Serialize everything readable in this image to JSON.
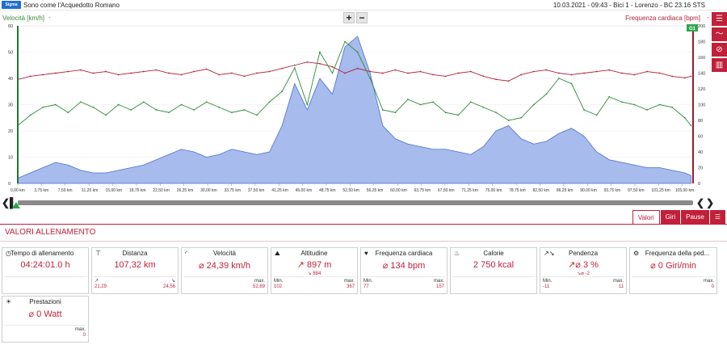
{
  "topbar": {
    "logo_text": "Sigma",
    "app_title": "Sono come l'Acquedotto Romano",
    "session_info": "10.03.2021  -  09:43  -  Bici 1  -  Lorenzo  -  BC 23.16 STS"
  },
  "chart_header": {
    "left_axis_title": "Velocità [km/h]",
    "right_axis_title": "Frequenza cardiaca [bpm]",
    "caret": "-",
    "zoom_in": "+",
    "zoom_out": "−",
    "marker_label": "G1"
  },
  "toolbar_icons": [
    "list-icon",
    "line-chart-icon",
    "no-signal-icon",
    "bar-chart-icon"
  ],
  "timeline": {
    "prev": "❮",
    "next": "❯",
    "marker": "▌"
  },
  "tabs": [
    {
      "label": "Valori",
      "active": true
    },
    {
      "label": "Giri",
      "active": false
    },
    {
      "label": "Pause",
      "active": false
    },
    {
      "label": "☰",
      "active": false
    }
  ],
  "section_title": "VALORI ALLENAMENTO",
  "colors": {
    "accent": "#c21f39",
    "speed": "#2f8a3a",
    "heart": "#b3233a",
    "altitude_fill": "#9db4ea",
    "altitude_stroke": "#4a6fd4"
  },
  "cards": [
    {
      "icon": "clock-icon",
      "icon_glyph": "◷",
      "title": "Tempo di allenamento",
      "value": "04:24:01.0 h",
      "min_label": "",
      "min_value": "",
      "max_label": "",
      "max_value": ""
    },
    {
      "icon": "signpost-icon",
      "icon_glyph": "⊤",
      "title": "Distanza",
      "value": "107,32 km",
      "min_label": "↗",
      "min_value": "21,29",
      "max_label": "↘",
      "max_value": "24,56"
    },
    {
      "icon": "speedometer-icon",
      "icon_glyph": "◜",
      "title": "Velocità",
      "value": "⌀ 24,39 km/h",
      "min_label": "",
      "min_value": "",
      "max_label": "max.",
      "max_value": "52,69"
    },
    {
      "icon": "mountain-icon",
      "icon_glyph": "⛰",
      "title": "Altitudine",
      "value": "↗ 897 m",
      "sub": "↘ 884",
      "min_label": "Min.",
      "min_value": "102",
      "max_label": "max.",
      "max_value": "367"
    },
    {
      "icon": "heart-icon",
      "icon_glyph": "♥",
      "title": "Frequenza cardiaca",
      "value": "⌀ 134 bpm",
      "min_label": "Min.",
      "min_value": "77",
      "max_label": "max.",
      "max_value": "157"
    },
    {
      "icon": "flame-icon",
      "icon_glyph": "♨",
      "title": "Calorie",
      "value": "2 750 kcal",
      "min_label": "",
      "min_value": "",
      "max_label": "",
      "max_value": ""
    },
    {
      "icon": "gradient-icon",
      "icon_glyph": "↗↘",
      "title": "Pendenza",
      "value": "↗⌀ 3 %",
      "sub": "↘⌀ -2",
      "min_label": "Min.",
      "min_value": "-11",
      "max_label": "max.",
      "max_value": "11"
    },
    {
      "icon": "pedal-icon",
      "icon_glyph": "⚙",
      "title": "Frequenza della ped...",
      "value": "⌀ 0 Giri/min",
      "min_label": "",
      "min_value": "",
      "max_label": "max.",
      "max_value": "0"
    },
    {
      "icon": "bulb-icon",
      "icon_glyph": "☀",
      "title": "Prestazioni",
      "value": "⌀ 0 Watt",
      "min_label": "",
      "min_value": "",
      "max_label": "max.",
      "max_value": "0"
    }
  ],
  "chart_data": {
    "type": "line",
    "title": "",
    "xlabel": "",
    "ylabel": "Velocità [km/h]",
    "y2label": "Frequenza cardiaca [bpm]",
    "xlim": [
      0,
      107.32
    ],
    "ylim": [
      0,
      60
    ],
    "y2lim": [
      0,
      200
    ],
    "x_ticks": [
      "0,00 km",
      "3,75 km",
      "7,50 km",
      "11,25 km",
      "15,00 km",
      "18,75 km",
      "22,50 km",
      "26,25 km",
      "30,00 km",
      "33,75 km",
      "37,50 km",
      "41,25 km",
      "45,00 km",
      "48,75 km",
      "52,50 km",
      "56,25 km",
      "60,00 km",
      "63,75 km",
      "67,50 km",
      "71,25 km",
      "75,00 km",
      "78,75 km",
      "82,50 km",
      "86,25 km",
      "90,00 km",
      "93,75 km",
      "97,50 km",
      "101,25 km",
      "105,00 km"
    ],
    "y_ticks": [
      "0",
      "10",
      "20",
      "30",
      "40",
      "50",
      "60"
    ],
    "y2_ticks": [
      "0",
      "20",
      "40",
      "60",
      "80",
      "100",
      "120",
      "140",
      "160",
      "180",
      "200"
    ],
    "grid": true,
    "series": [
      {
        "name": "Frequenza cardiaca [bpm]",
        "axis": "right",
        "kind": "line",
        "x": [
          0,
          2,
          4,
          6,
          8,
          10,
          12,
          14,
          16,
          18,
          20,
          22,
          24,
          26,
          28,
          30,
          32,
          34,
          36,
          38,
          40,
          42,
          44,
          46,
          48,
          50,
          52,
          54,
          56,
          58,
          60,
          62,
          64,
          66,
          68,
          70,
          72,
          74,
          76,
          78,
          80,
          82,
          84,
          86,
          88,
          90,
          92,
          94,
          96,
          98,
          100,
          102,
          104,
          106,
          107
        ],
        "values": [
          132,
          136,
          138,
          140,
          142,
          144,
          140,
          142,
          138,
          140,
          142,
          144,
          140,
          138,
          142,
          145,
          138,
          140,
          136,
          140,
          142,
          146,
          150,
          154,
          152,
          148,
          140,
          146,
          142,
          140,
          144,
          140,
          142,
          138,
          136,
          140,
          142,
          136,
          132,
          130,
          138,
          142,
          144,
          140,
          138,
          140,
          142,
          144,
          140,
          138,
          142,
          140,
          136,
          134,
          136
        ]
      },
      {
        "name": "Velocità [km/h]",
        "axis": "left",
        "kind": "line",
        "x": [
          0,
          2,
          4,
          6,
          8,
          10,
          12,
          14,
          16,
          18,
          20,
          22,
          24,
          26,
          28,
          30,
          32,
          34,
          36,
          38,
          40,
          42,
          44,
          46,
          48,
          50,
          52,
          54,
          56,
          58,
          60,
          62,
          64,
          66,
          68,
          70,
          72,
          74,
          76,
          78,
          80,
          82,
          84,
          86,
          88,
          90,
          92,
          94,
          96,
          98,
          100,
          102,
          104,
          106,
          107
        ],
        "values": [
          22,
          26,
          29,
          30,
          27,
          31,
          29,
          26,
          30,
          28,
          31,
          28,
          27,
          30,
          28,
          31,
          29,
          27,
          28,
          26,
          31,
          35,
          44,
          30,
          50,
          42,
          54,
          50,
          40,
          28,
          27,
          32,
          30,
          31,
          27,
          26,
          31,
          29,
          27,
          24,
          25,
          30,
          34,
          40,
          38,
          28,
          26,
          33,
          31,
          30,
          28,
          30,
          29,
          25,
          22
        ]
      },
      {
        "name": "Altitudine",
        "axis": "left",
        "kind": "area",
        "x": [
          0,
          2,
          4,
          6,
          8,
          10,
          12,
          14,
          16,
          18,
          20,
          22,
          24,
          26,
          28,
          30,
          32,
          34,
          36,
          38,
          40,
          42,
          44,
          46,
          48,
          50,
          52,
          54,
          56,
          58,
          60,
          62,
          64,
          66,
          68,
          70,
          72,
          74,
          76,
          78,
          80,
          82,
          84,
          86,
          88,
          90,
          92,
          94,
          96,
          98,
          100,
          102,
          104,
          106,
          107
        ],
        "values": [
          2,
          4,
          6,
          8,
          7,
          5,
          4,
          4,
          5,
          6,
          7,
          9,
          11,
          13,
          12,
          10,
          11,
          13,
          12,
          11,
          12,
          22,
          38,
          28,
          40,
          34,
          52,
          56,
          42,
          22,
          17,
          15,
          14,
          13,
          13,
          12,
          11,
          14,
          20,
          22,
          17,
          15,
          16,
          19,
          21,
          18,
          12,
          9,
          8,
          7,
          6,
          6,
          5,
          4,
          3
        ]
      }
    ]
  }
}
